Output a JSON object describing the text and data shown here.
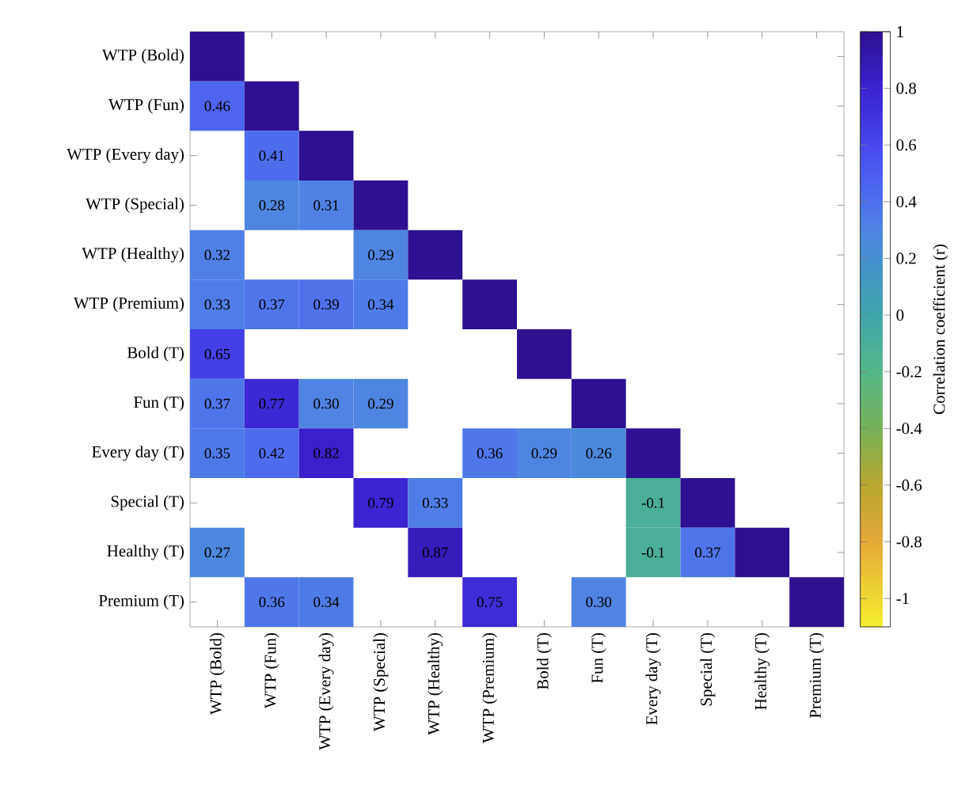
{
  "chart_data": {
    "type": "heatmap",
    "categories": [
      "WTP (Bold)",
      "WTP (Fun)",
      "WTP (Every day)",
      "WTP (Special)",
      "WTP (Healthy)",
      "WTP (Premium)",
      "Bold (T)",
      "Fun (T)",
      "Every day (T)",
      "Special (T)",
      "Healthy (T)",
      "Premium (T)"
    ],
    "y_categories": [
      "WTP (Bold)",
      "WTP (Fun)",
      "WTP (Every day)",
      "WTP (Special)",
      "WTP (Healthy)",
      "WTP (Premium)",
      "Bold (T)",
      "Fun (T)",
      "Every day (T)",
      "Special (T)",
      "Healthy (T)",
      "Premium (T)"
    ],
    "cells": [
      [
        1,
        null,
        null,
        null,
        null,
        null,
        null,
        null,
        null,
        null,
        null,
        null
      ],
      [
        0.46,
        1,
        null,
        null,
        null,
        null,
        null,
        null,
        null,
        null,
        null,
        null
      ],
      [
        null,
        0.41,
        1,
        null,
        null,
        null,
        null,
        null,
        null,
        null,
        null,
        null
      ],
      [
        null,
        0.28,
        0.31,
        1,
        null,
        null,
        null,
        null,
        null,
        null,
        null,
        null
      ],
      [
        0.32,
        null,
        null,
        0.29,
        1,
        null,
        null,
        null,
        null,
        null,
        null,
        null
      ],
      [
        0.33,
        0.37,
        0.39,
        0.34,
        null,
        1,
        null,
        null,
        null,
        null,
        null,
        null
      ],
      [
        0.65,
        null,
        null,
        null,
        null,
        null,
        1,
        null,
        null,
        null,
        null,
        null
      ],
      [
        0.37,
        0.77,
        0.3,
        0.29,
        null,
        null,
        null,
        1,
        null,
        null,
        null,
        null
      ],
      [
        0.35,
        0.42,
        0.82,
        null,
        null,
        0.36,
        0.29,
        0.26,
        1,
        null,
        null,
        null
      ],
      [
        null,
        null,
        null,
        0.79,
        0.33,
        null,
        null,
        null,
        -0.1,
        1,
        null,
        null
      ],
      [
        0.27,
        null,
        null,
        null,
        0.87,
        null,
        null,
        null,
        -0.1,
        0.37,
        1,
        null
      ],
      [
        null,
        0.36,
        0.34,
        null,
        null,
        0.75,
        null,
        0.3,
        null,
        null,
        null,
        1
      ]
    ],
    "cell_labels": [
      [
        null,
        null,
        null,
        null,
        null,
        null,
        null,
        null,
        null,
        null,
        null,
        null
      ],
      [
        "0.46",
        null,
        null,
        null,
        null,
        null,
        null,
        null,
        null,
        null,
        null,
        null
      ],
      [
        null,
        "0.41",
        null,
        null,
        null,
        null,
        null,
        null,
        null,
        null,
        null,
        null
      ],
      [
        null,
        "0.28",
        "0.31",
        null,
        null,
        null,
        null,
        null,
        null,
        null,
        null,
        null
      ],
      [
        "0.32",
        null,
        null,
        "0.29",
        null,
        null,
        null,
        null,
        null,
        null,
        null,
        null
      ],
      [
        "0.33",
        "0.37",
        "0.39",
        "0.34",
        null,
        null,
        null,
        null,
        null,
        null,
        null,
        null
      ],
      [
        "0.65",
        null,
        null,
        null,
        null,
        null,
        null,
        null,
        null,
        null,
        null,
        null
      ],
      [
        "0.37",
        "0.77",
        "0.30",
        "0.29",
        null,
        null,
        null,
        null,
        null,
        null,
        null,
        null
      ],
      [
        "0.35",
        "0.42",
        "0.82",
        null,
        null,
        "0.36",
        "0.29",
        "0.26",
        null,
        null,
        null,
        null
      ],
      [
        null,
        null,
        null,
        "0.79",
        "0.33",
        null,
        null,
        null,
        "-0.1",
        null,
        null,
        null
      ],
      [
        "0.27",
        null,
        null,
        null,
        "0.87",
        null,
        null,
        null,
        "-0.1",
        "0.37",
        null,
        null
      ],
      [
        null,
        "0.36",
        "0.34",
        null,
        null,
        "0.75",
        null,
        "0.30",
        null,
        null,
        null,
        null
      ]
    ],
    "clim": [
      -1.1,
      1
    ],
    "cticks": [
      -1,
      -0.8,
      -0.6,
      -0.4,
      -0.2,
      0,
      0.2,
      0.4,
      0.6,
      0.8,
      1
    ],
    "clabel": "Correlation coefficient (r)"
  }
}
